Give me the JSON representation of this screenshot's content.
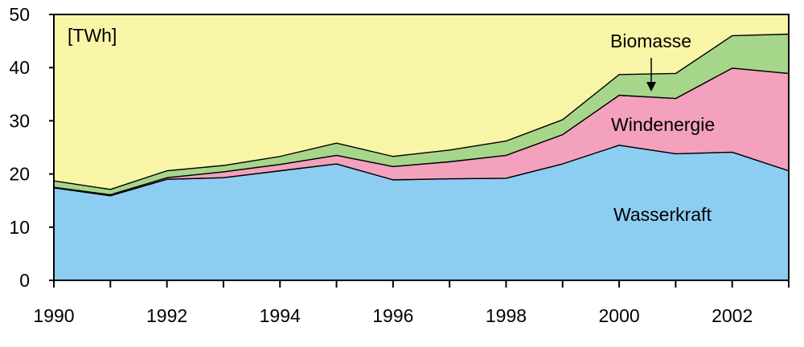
{
  "chart_data": {
    "type": "area",
    "stacked": true,
    "unit_label": "[TWh]",
    "x": [
      1990,
      1991,
      1992,
      1993,
      1994,
      1995,
      1996,
      1997,
      1998,
      1999,
      2000,
      2001,
      2002,
      2003
    ],
    "xlim": [
      1990,
      2003
    ],
    "ylim": [
      0,
      50
    ],
    "xticks": [
      "1990",
      "1992",
      "1994",
      "1996",
      "1998",
      "2000",
      "2002"
    ],
    "yticks": [
      "0",
      "10",
      "20",
      "30",
      "40",
      "50"
    ],
    "background_color": "#f8f5a6",
    "series": [
      {
        "name": "Wasserkraft",
        "color": "#8ecdf2",
        "values": [
          17.4,
          15.9,
          19.0,
          19.3,
          20.6,
          21.9,
          18.9,
          19.1,
          19.2,
          21.9,
          25.4,
          23.8,
          24.1,
          20.6
        ]
      },
      {
        "name": "Windenergie",
        "color": "#f3a1bd",
        "values": [
          0.1,
          0.2,
          0.3,
          1.1,
          1.2,
          1.6,
          2.5,
          3.2,
          4.3,
          5.5,
          9.4,
          10.4,
          15.8,
          18.3
        ]
      },
      {
        "name": "Biomasse",
        "color": "#a6d68a",
        "values": [
          1.2,
          1.0,
          1.3,
          1.2,
          1.5,
          2.3,
          1.9,
          2.2,
          2.7,
          2.8,
          3.9,
          4.7,
          6.1,
          7.4
        ]
      }
    ],
    "biomasse_arrow": true
  }
}
